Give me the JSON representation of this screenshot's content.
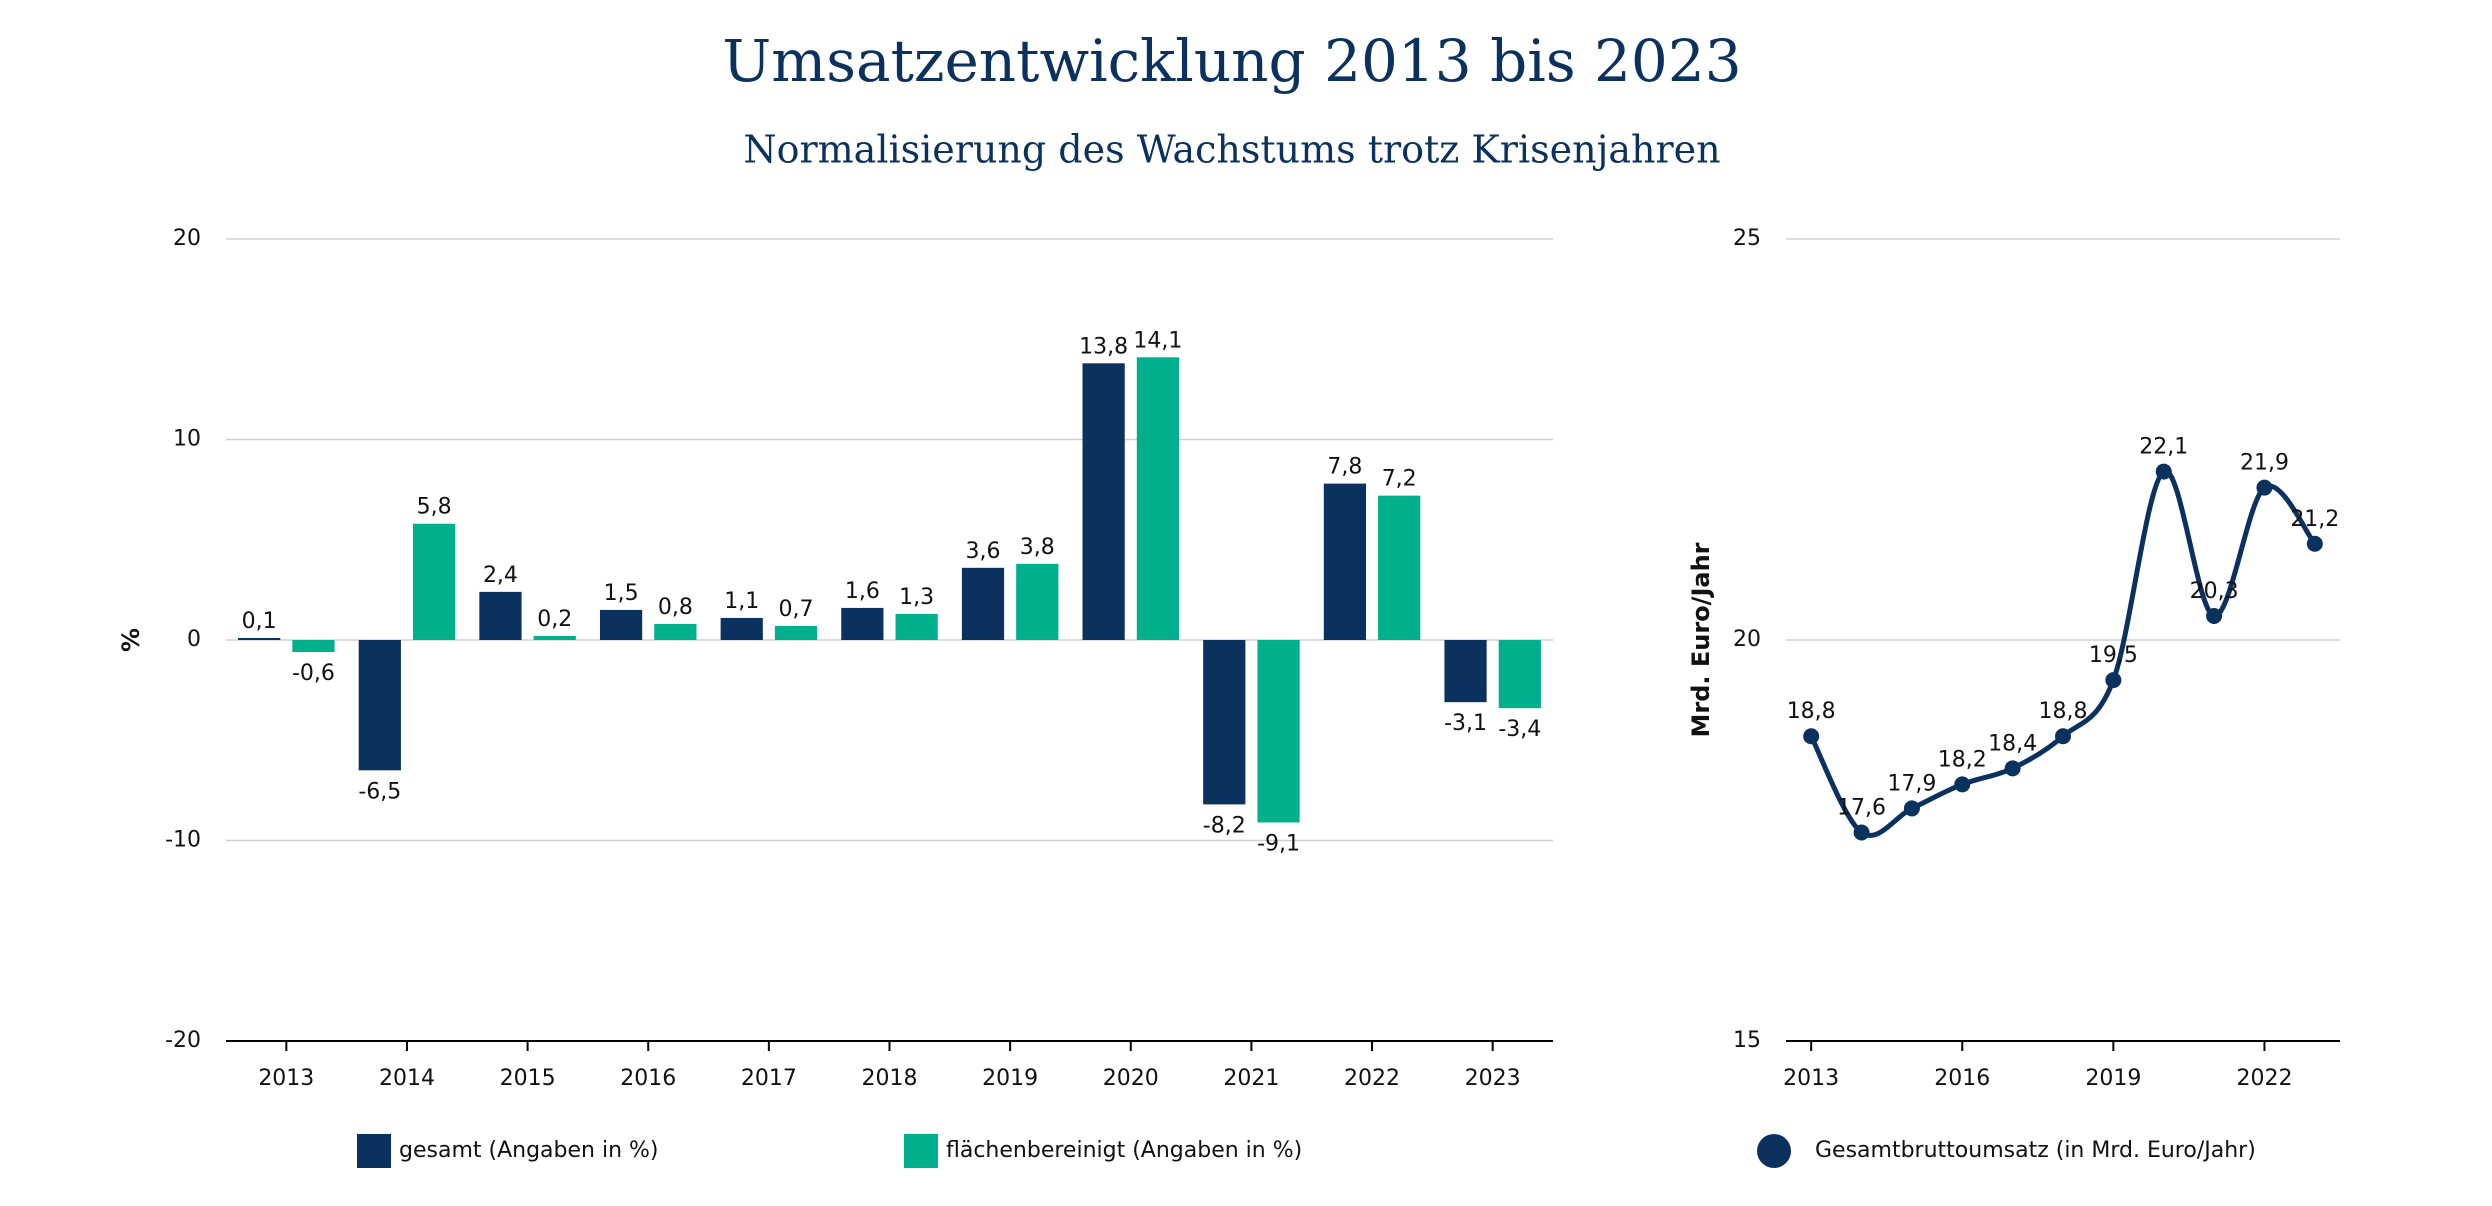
{
  "title": "Umsatzentwicklung 2013 bis 2023",
  "subtitle": "Normalisierung des Wachstums trotz Krisenjahren",
  "chart_data": [
    {
      "type": "bar",
      "ylabel": "%",
      "categories": [
        "2013",
        "2014",
        "2015",
        "2016",
        "2017",
        "2018",
        "2019",
        "2020",
        "2021",
        "2022",
        "2023"
      ],
      "series": [
        {
          "name": "gesamt (Angaben in %)",
          "color": "#0b315e",
          "values": [
            0.1,
            -6.5,
            2.4,
            1.5,
            1.1,
            1.6,
            3.6,
            13.8,
            -8.2,
            7.8,
            -3.1
          ],
          "value_labels": [
            "0,1",
            "-6,5",
            "2,4",
            "1,5",
            "1,1",
            "1,6",
            "3,6",
            "13,8",
            "-8,2",
            "7,8",
            "-3,1"
          ]
        },
        {
          "name": "flächenbereinigt (Angaben in %)",
          "color": "#00b08c",
          "values": [
            -0.6,
            5.8,
            0.2,
            0.8,
            0.7,
            1.3,
            3.8,
            14.1,
            -9.1,
            7.2,
            -3.4
          ],
          "value_labels": [
            "-0,6",
            "5,8",
            "0,2",
            "0,8",
            "0,7",
            "1,3",
            "3,8",
            "14,1",
            "-9,1",
            "7,2",
            "-3,4"
          ]
        }
      ],
      "ylim": [
        -20,
        20
      ],
      "yticks": [
        -20,
        -10,
        0,
        10,
        20
      ],
      "grid": true
    },
    {
      "type": "line",
      "ylabel": "Mrd. Euro/Jahr",
      "x": [
        2013,
        2014,
        2015,
        2016,
        2017,
        2018,
        2019,
        2020,
        2021,
        2022,
        2023
      ],
      "series": [
        {
          "name": "Gesamtbruttoumsatz (in Mrd. Euro/Jahr)",
          "color": "#0b315e",
          "values": [
            18.8,
            17.6,
            17.9,
            18.2,
            18.4,
            18.8,
            19.5,
            22.1,
            20.3,
            21.9,
            21.2
          ],
          "value_labels": [
            "18,8",
            "17,6",
            "17,9",
            "18,2",
            "18,4",
            "18,8",
            "19,5",
            "22,1",
            "20,3",
            "21,9",
            "21,2"
          ]
        }
      ],
      "xlim": [
        2012.5,
        2023.5
      ],
      "xticks": [
        2013,
        2016,
        2019,
        2022
      ],
      "ylim": [
        15,
        25
      ],
      "yticks": [
        15,
        20,
        25
      ],
      "grid": true
    }
  ]
}
